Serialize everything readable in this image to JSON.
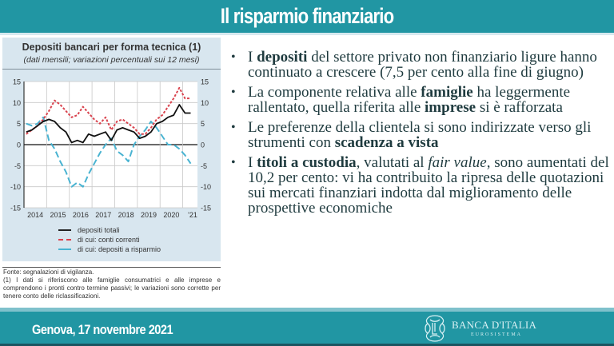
{
  "slide": {
    "title": "Il risparmio finanziario",
    "footer_date": "Genova, 17 novembre 2021",
    "logo": {
      "name": "BANCA D'ITALIA",
      "subtitle": "EUROSISTEMA",
      "icon": "banca-italia-emblem-icon"
    }
  },
  "colors": {
    "header_bg": "#2196a3",
    "text": "#1f3b3f",
    "chart_panel_bg": "#d8e6ef",
    "series_total": "#111111",
    "series_current": "#d9434e",
    "series_savings": "#49b3d1"
  },
  "bullets": [
    {
      "parts": [
        {
          "t": "I "
        },
        {
          "t": "depositi",
          "b": true
        },
        {
          "t": " del settore privato non finanziario ligure hanno continuato a crescere (7,5 per cento alla fine di giugno)"
        }
      ]
    },
    {
      "parts": [
        {
          "t": "La componente relativa alle "
        },
        {
          "t": "famiglie",
          "b": true
        },
        {
          "t": " ha leggermente rallentato, quella riferita alle "
        },
        {
          "t": "imprese",
          "b": true
        },
        {
          "t": " si è rafforzata"
        }
      ]
    },
    {
      "parts": [
        {
          "t": "Le preferenze della clientela si sono indirizzate verso gli strumenti con "
        },
        {
          "t": "scadenza a vista",
          "b": true
        }
      ]
    },
    {
      "parts": [
        {
          "t": "I "
        },
        {
          "t": "titoli a custodia",
          "b": true
        },
        {
          "t": ", valutati al "
        },
        {
          "t": "fair value",
          "i": true
        },
        {
          "t": ", sono aumentati del 10,2 per cento: vi ha contribuito la ripresa delle quotazioni sui mercati finanziari indotta dal miglioramento delle prospettive economiche"
        }
      ]
    }
  ],
  "notes": {
    "source": "Fonte: segnalazioni di vigilanza.",
    "footnote": "(1) I dati si riferiscono alle famiglie consumatrici e alle imprese e comprendono i pronti contro termine passivi; le variazioni sono corrette per tenere conto delle riclassificazioni."
  },
  "chart_data": {
    "type": "line",
    "title": "Depositi bancari per forma tecnica (1)",
    "subtitle": "(dati mensili; variazioni percentuali sui 12 mesi)",
    "xlabel": "",
    "ylabel": "",
    "ylim": [
      -15,
      15
    ],
    "yticks": [
      15,
      10,
      5,
      0,
      -5,
      -10,
      -15
    ],
    "xticks": [
      "2014",
      "2015",
      "2016",
      "2017",
      "2018",
      "2019",
      "2020",
      "'21"
    ],
    "grid": true,
    "legend_position": "bottom",
    "x_start": 2014.0,
    "x_step": 0.25,
    "x": [
      "2014Q1",
      "2014Q2",
      "2014Q3",
      "2014Q4",
      "2015Q1",
      "2015Q2",
      "2015Q3",
      "2015Q4",
      "2016Q1",
      "2016Q2",
      "2016Q3",
      "2016Q4",
      "2017Q1",
      "2017Q2",
      "2017Q3",
      "2017Q4",
      "2018Q1",
      "2018Q2",
      "2018Q3",
      "2018Q4",
      "2019Q1",
      "2019Q2",
      "2019Q3",
      "2019Q4",
      "2020Q1",
      "2020Q2",
      "2020Q3",
      "2020Q4",
      "2021Q1",
      "2021Q2"
    ],
    "series": [
      {
        "name": "depositi totali",
        "style": "solid",
        "color": "#111111",
        "values": [
          3,
          3.5,
          4.5,
          5.5,
          6,
          5.5,
          4,
          3,
          0.5,
          1,
          0.5,
          2.5,
          2,
          2.5,
          3,
          1,
          3.5,
          4,
          3.5,
          3,
          1.5,
          2,
          3,
          5,
          5.5,
          6.5,
          7,
          9.5,
          7.5,
          7.5
        ]
      },
      {
        "name": "di cui: conti correnti",
        "style": "dashed",
        "color": "#d9434e",
        "values": [
          2.5,
          3.5,
          4.5,
          6,
          8,
          10.5,
          9.5,
          8,
          6.5,
          7,
          9,
          7.5,
          6,
          5,
          6.5,
          3.5,
          5.5,
          6,
          5,
          4,
          2.5,
          2.5,
          4,
          6,
          7,
          9,
          11,
          13.5,
          11,
          11
        ]
      },
      {
        "name": "di cui: depositi a risparmio",
        "style": "dashed",
        "color": "#49b3d1",
        "values": [
          5,
          4.5,
          5,
          6.5,
          1,
          -1,
          -4,
          -6.5,
          -10,
          -9,
          -10,
          -7,
          -4.5,
          -2,
          0,
          1.5,
          -1.5,
          -2.5,
          -4,
          0,
          2,
          3.5,
          5.5,
          4,
          2,
          0,
          0,
          -1,
          -2.5,
          -4.5
        ]
      }
    ]
  }
}
